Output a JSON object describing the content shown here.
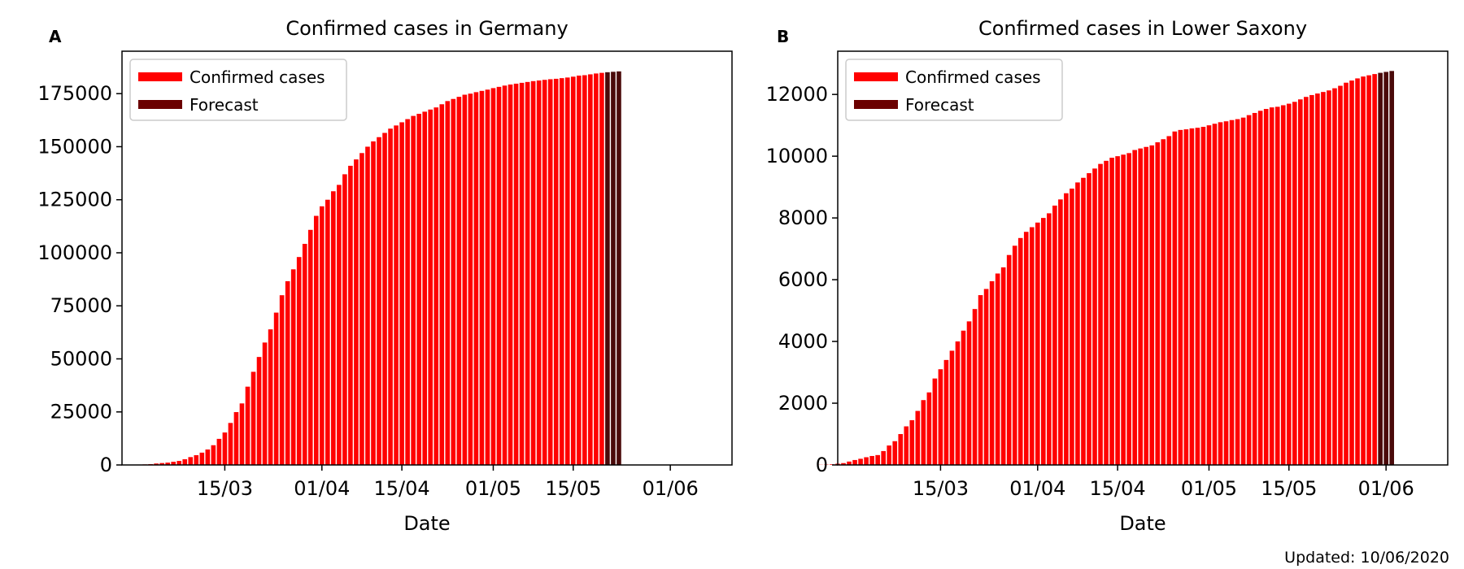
{
  "footer": {
    "updated": "Updated: 10/06/2020"
  },
  "legend": {
    "confirmed": "Confirmed cases",
    "forecast": "Forecast"
  },
  "colors": {
    "confirmed": "#ff0000",
    "forecast": "#6b0000",
    "forecast_bar": "#4a0a0a"
  },
  "chart_data": [
    {
      "panel": "A",
      "type": "bar",
      "title": "Confirmed cases in Germany",
      "xlabel": "Date",
      "ylabel": "",
      "x_start": "2020-03-01",
      "ylim": [
        0,
        195000
      ],
      "yticks": [
        0,
        25000,
        50000,
        75000,
        100000,
        125000,
        150000,
        175000
      ],
      "xticks": [
        {
          "day": 14,
          "label": "15/03"
        },
        {
          "day": 31,
          "label": "01/04"
        },
        {
          "day": 45,
          "label": "15/04"
        },
        {
          "day": 61,
          "label": "01/05"
        },
        {
          "day": 75,
          "label": "15/05"
        },
        {
          "day": 92,
          "label": "01/06"
        }
      ],
      "values": [
        130,
        150,
        200,
        260,
        400,
        680,
        900,
        1100,
        1500,
        1900,
        2700,
        3700,
        4600,
        5800,
        7300,
        9300,
        12300,
        15300,
        19800,
        24900,
        29000,
        36900,
        43900,
        50900,
        57700,
        63900,
        71800,
        80000,
        86600,
        92200,
        98000,
        104200,
        110800,
        117400,
        121900,
        125000,
        129000,
        132000,
        137000,
        141000,
        144000,
        147000,
        150000,
        152500,
        154500,
        156500,
        158500,
        160000,
        161500,
        163000,
        164500,
        165500,
        166500,
        167500,
        168500,
        170000,
        171500,
        172500,
        173500,
        174500,
        175000,
        175700,
        176300,
        176900,
        177600,
        178200,
        178800,
        179300,
        179700,
        180100,
        180500,
        180900,
        181200,
        181500,
        181800,
        182000,
        182300,
        182600,
        183000,
        183500,
        183700,
        184100,
        184500,
        184800
      ],
      "forecast_values": [
        185100,
        185300,
        185500
      ],
      "bar_day0": -3
    },
    {
      "panel": "B",
      "type": "bar",
      "title": "Confirmed cases in Lower Saxony",
      "xlabel": "Date",
      "ylabel": "",
      "x_start": "2020-03-01",
      "ylim": [
        0,
        13400
      ],
      "yticks": [
        0,
        2000,
        4000,
        6000,
        8000,
        10000,
        12000
      ],
      "xticks": [
        {
          "day": 14,
          "label": "15/03"
        },
        {
          "day": 31,
          "label": "01/04"
        },
        {
          "day": 45,
          "label": "15/04"
        },
        {
          "day": 61,
          "label": "01/05"
        },
        {
          "day": 75,
          "label": "15/05"
        },
        {
          "day": 92,
          "label": "01/06"
        }
      ],
      "values": [
        0,
        0,
        0,
        0,
        5,
        10,
        20,
        40,
        60,
        110,
        160,
        200,
        250,
        290,
        320,
        450,
        630,
        770,
        1000,
        1250,
        1450,
        1750,
        2100,
        2350,
        2800,
        3100,
        3400,
        3700,
        4000,
        4350,
        4650,
        5050,
        5500,
        5700,
        5950,
        6200,
        6400,
        6800,
        7100,
        7350,
        7550,
        7700,
        7850,
        8000,
        8150,
        8400,
        8600,
        8800,
        8950,
        9150,
        9300,
        9450,
        9600,
        9750,
        9850,
        9950,
        10000,
        10050,
        10100,
        10200,
        10250,
        10300,
        10350,
        10450,
        10550,
        10650,
        10800,
        10850,
        10870,
        10900,
        10920,
        10950,
        11000,
        11050,
        11100,
        11130,
        11170,
        11200,
        11250,
        11330,
        11400,
        11470,
        11530,
        11580,
        11600,
        11650,
        11700,
        11760,
        11840,
        11920,
        11980,
        12030,
        12080,
        12130,
        12200,
        12280,
        12380,
        12450,
        12520,
        12580,
        12620,
        12660
      ],
      "forecast_values": [
        12700,
        12730,
        12760
      ],
      "bar_day0": -11
    }
  ]
}
